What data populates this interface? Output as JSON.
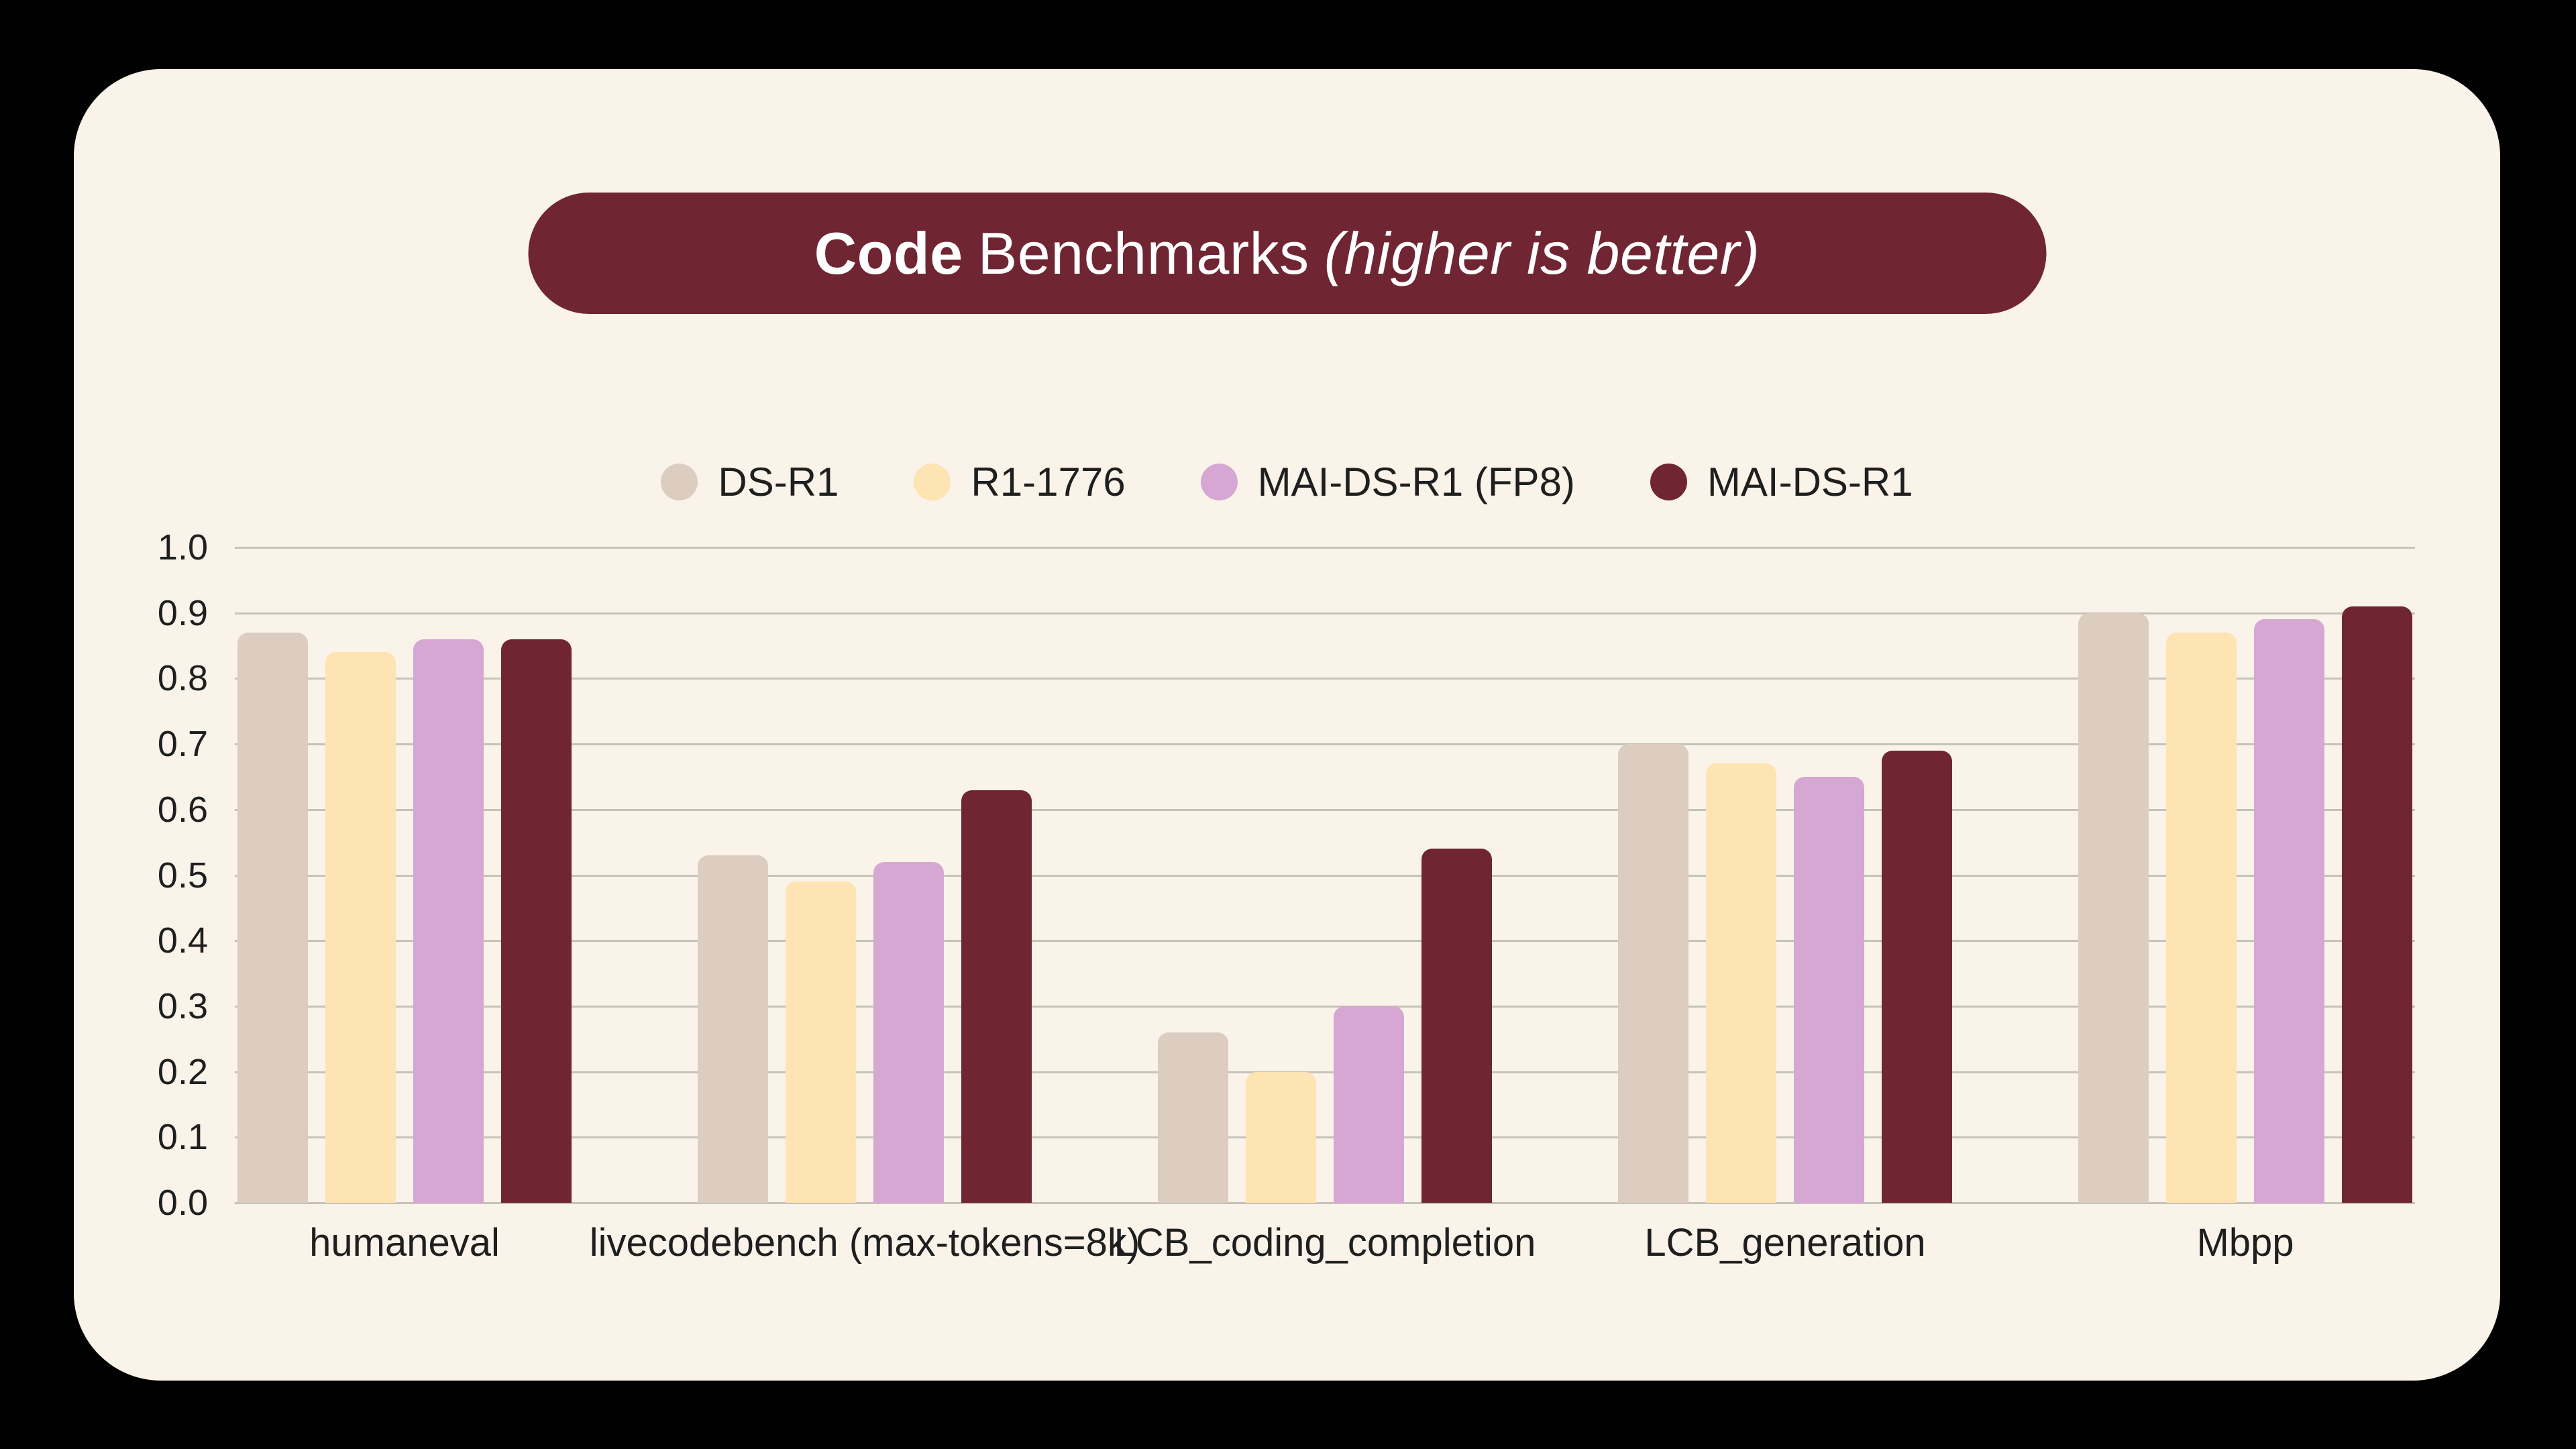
{
  "title": {
    "bold": "Code",
    "regular": "Benchmarks",
    "italic": "(higher is better)"
  },
  "colors": {
    "page_background": "#000000",
    "panel_background": "#faf3e9",
    "banner_background": "#702532",
    "gridline": "#c5c2b9",
    "text": "#1f1f1f",
    "title_text": "#ffffff"
  },
  "chart_data": {
    "type": "bar",
    "title": "Code Benchmarks (higher is better)",
    "categories": [
      "humaneval",
      "livecodebench (max-tokens=8k)",
      "LCB_coding_completion",
      "LCB_generation",
      "Mbpp"
    ],
    "series": [
      {
        "name": "DS-R1",
        "color": "#ddcdc1",
        "values": [
          0.87,
          0.53,
          0.26,
          0.7,
          0.9
        ]
      },
      {
        "name": "R1-1776",
        "color": "#fee3b3",
        "values": [
          0.84,
          0.49,
          0.2,
          0.67,
          0.87
        ]
      },
      {
        "name": "MAI-DS-R1 (FP8)",
        "color": "#d7a7d4",
        "values": [
          0.86,
          0.52,
          0.3,
          0.65,
          0.89
        ]
      },
      {
        "name": "MAI-DS-R1",
        "color": "#702532",
        "values": [
          0.86,
          0.63,
          0.54,
          0.69,
          0.91
        ]
      }
    ],
    "ylim": [
      0.0,
      1.0
    ],
    "yticks": [
      "1.0",
      "0.9",
      "0.8",
      "0.7",
      "0.6",
      "0.5",
      "0.4",
      "0.3",
      "0.2",
      "0.1",
      "0.0"
    ],
    "xlabel": "",
    "ylabel": "",
    "grid": "horizontal",
    "legend_position": "top-center"
  }
}
